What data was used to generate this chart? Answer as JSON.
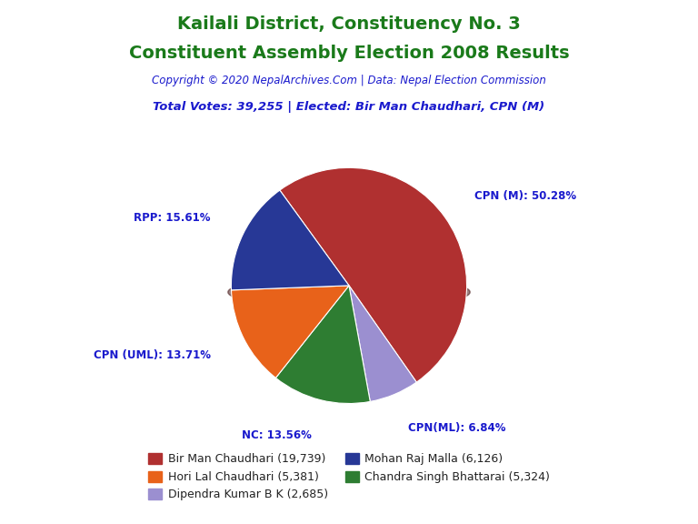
{
  "title_line1": "Kailali District, Constituency No. 3",
  "title_line2": "Constituent Assembly Election 2008 Results",
  "title_color": "#1a7a1a",
  "copyright_text": "Copyright © 2020 NepalArchives.Com | Data: Nepal Election Commission",
  "copyright_color": "#1a1acd",
  "total_votes_text": "Total Votes: 39,255 | Elected: Bir Man Chaudhari, CPN (M)",
  "total_votes_color": "#1a1acd",
  "slices": [
    {
      "label": "CPN (M): 50.28%",
      "value": 19739,
      "color": "#B03030",
      "pct": 50.28
    },
    {
      "label": "CPN(ML): 6.84%",
      "value": 2685,
      "color": "#9B8FD0",
      "pct": 6.84
    },
    {
      "label": "NC: 13.56%",
      "value": 5324,
      "color": "#2E7D32",
      "pct": 13.56
    },
    {
      "label": "CPN (UML): 13.71%",
      "value": 5381,
      "color": "#E8621A",
      "pct": 13.71
    },
    {
      "label": "RPP: 15.61%",
      "value": 6126,
      "color": "#273896",
      "pct": 15.61
    }
  ],
  "legend_entries": [
    {
      "label": "Bir Man Chaudhari (19,739)",
      "color": "#B03030"
    },
    {
      "label": "Hori Lal Chaudhari (5,381)",
      "color": "#E8621A"
    },
    {
      "label": "Dipendra Kumar B K (2,685)",
      "color": "#9B8FD0"
    },
    {
      "label": "Mohan Raj Malla (6,126)",
      "color": "#273896"
    },
    {
      "label": "Chandra Singh Bhattarai (5,324)",
      "color": "#2E7D32"
    }
  ],
  "label_color": "#1a1acd",
  "background_color": "#FFFFFF",
  "startangle": 126,
  "shadow_color": "#5a1010"
}
